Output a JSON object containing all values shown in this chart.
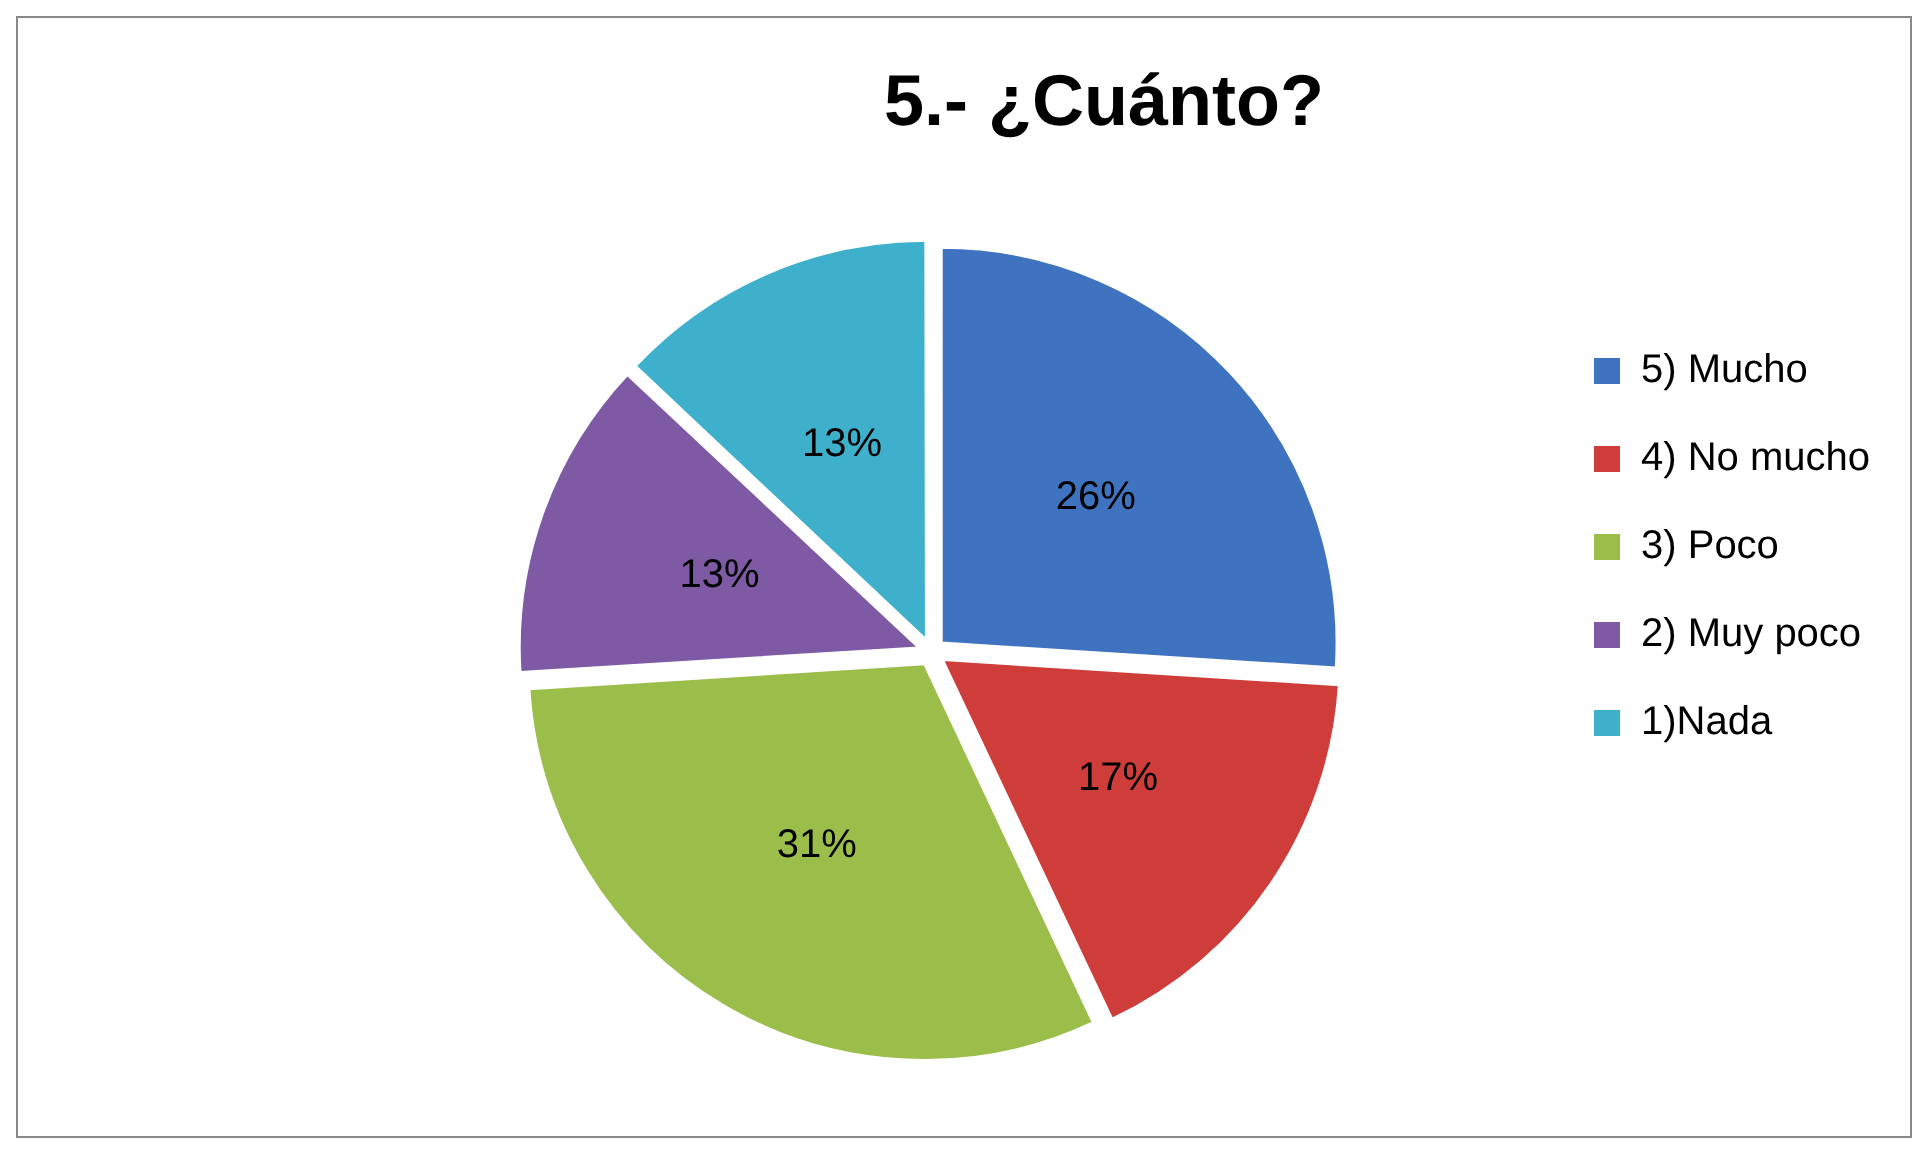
{
  "chart_data": {
    "type": "pie",
    "title": "5.- ¿Cuánto?",
    "categories": [
      "5) Mucho",
      "4) No mucho",
      "3) Poco",
      "2) Muy poco",
      "1)Nada"
    ],
    "values": [
      26,
      17,
      31,
      13,
      13
    ],
    "colors": [
      "#3f73c0",
      "#cf3d3a",
      "#9bbd4a",
      "#7d5aa3",
      "#3fb0cc"
    ],
    "value_labels": [
      "26%",
      "17%",
      "31%",
      "13%",
      "13%"
    ],
    "legend": "right"
  }
}
